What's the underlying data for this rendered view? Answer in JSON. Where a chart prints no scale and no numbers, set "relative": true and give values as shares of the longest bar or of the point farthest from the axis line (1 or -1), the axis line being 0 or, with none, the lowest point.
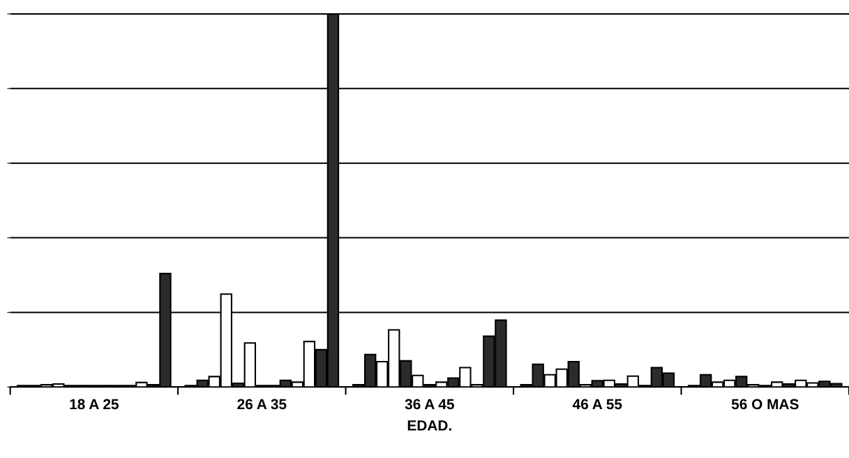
{
  "chart_data": {
    "type": "bar",
    "relative": true,
    "xlabel": "EDAD.",
    "categories": [
      "18 A 25",
      "26 A 35",
      "36 A 45",
      "46 A 55",
      "56 O MAS"
    ],
    "grid": "y",
    "legend": false,
    "series": [
      {
        "color": "#2b2b2b",
        "values": [
          0.004,
          0.004,
          0.006,
          0.006,
          0.004
        ]
      },
      {
        "color": "#2b2b2b",
        "values": [
          0.004,
          0.018,
          0.087,
          0.061,
          0.033
        ]
      },
      {
        "color": "#ffffff",
        "values": [
          0.006,
          0.028,
          0.068,
          0.033,
          0.013
        ]
      },
      {
        "color": "#ffffff",
        "values": [
          0.008,
          0.249,
          0.153,
          0.048,
          0.018
        ]
      },
      {
        "color": "#2b2b2b",
        "values": [
          0.004,
          0.01,
          0.07,
          0.068,
          0.028
        ]
      },
      {
        "color": "#ffffff",
        "values": [
          0.004,
          0.118,
          0.031,
          0.006,
          0.006
        ]
      },
      {
        "color": "#2b2b2b",
        "values": [
          0.004,
          0.004,
          0.006,
          0.017,
          0.004
        ]
      },
      {
        "color": "#ffffff",
        "values": [
          0.004,
          0.004,
          0.013,
          0.018,
          0.013
        ]
      },
      {
        "color": "#2b2b2b",
        "values": [
          0.004,
          0.018,
          0.024,
          0.008,
          0.008
        ]
      },
      {
        "color": "#ffffff",
        "values": [
          0.004,
          0.013,
          0.052,
          0.029,
          0.018
        ]
      },
      {
        "color": "#ffffff",
        "values": [
          0.012,
          0.122,
          0.006,
          0.004,
          0.011
        ]
      },
      {
        "color": "#2b2b2b",
        "values": [
          0.006,
          0.1,
          0.136,
          0.052,
          0.015
        ]
      },
      {
        "color": "#2b2b2b",
        "values": [
          0.304,
          1.0,
          0.179,
          0.037,
          0.009
        ]
      }
    ]
  }
}
